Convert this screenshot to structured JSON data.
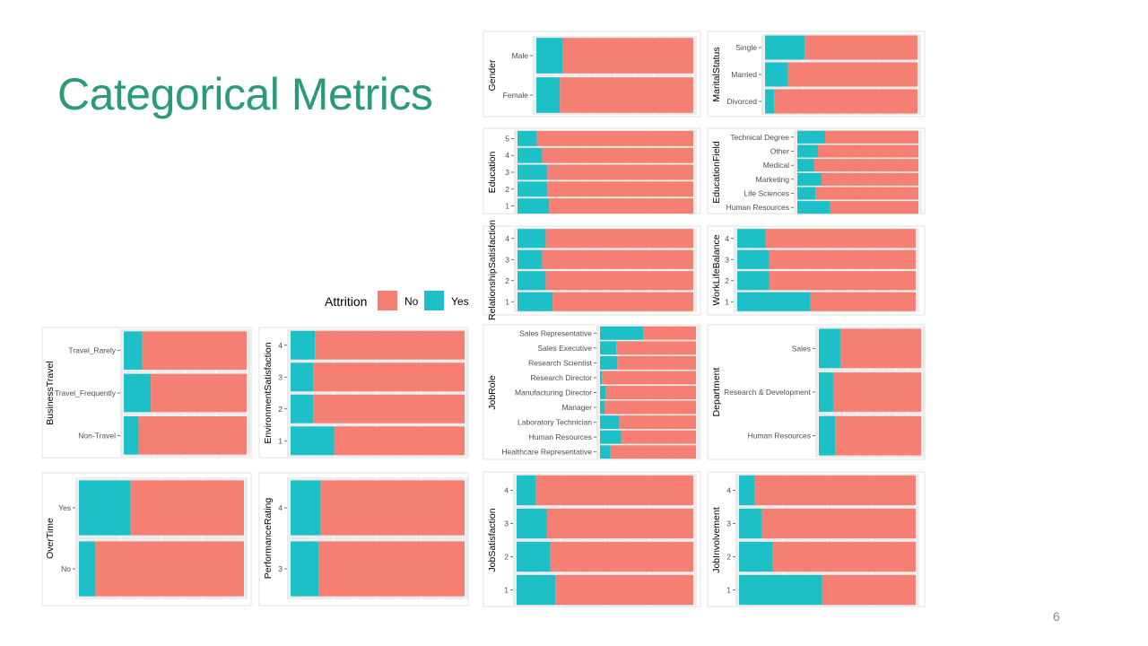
{
  "slide": {
    "title": "Categorical Metrics",
    "page_number": "6"
  },
  "colors": {
    "title": "#2a9a7c",
    "yes": "#1cc0c6",
    "no": "#f47f72",
    "panel_background": "#ebebeb",
    "grid": "#ffffff"
  },
  "legend": {
    "title": "Attrition",
    "entries": [
      {
        "label": "No",
        "color": "#f47f72"
      },
      {
        "label": "Yes",
        "color": "#1cc0c6"
      }
    ]
  },
  "chart_data": [
    {
      "id": "gender",
      "type": "bar",
      "stacked": "proportion",
      "orientation": "horizontal",
      "ylabel": "Gender",
      "xlim": [
        0,
        1
      ],
      "categories": [
        "Male",
        "Female"
      ],
      "series": [
        {
          "name": "Yes",
          "values": [
            0.17,
            0.15
          ]
        },
        {
          "name": "No",
          "values": [
            0.83,
            0.85
          ]
        }
      ]
    },
    {
      "id": "marital-status",
      "type": "bar",
      "stacked": "proportion",
      "orientation": "horizontal",
      "ylabel": "MaritalStatus",
      "xlim": [
        0,
        1
      ],
      "categories": [
        "Single",
        "Married",
        "Divorced"
      ],
      "series": [
        {
          "name": "Yes",
          "values": [
            0.26,
            0.15,
            0.06
          ]
        },
        {
          "name": "No",
          "values": [
            0.74,
            0.85,
            0.94
          ]
        }
      ]
    },
    {
      "id": "education",
      "type": "bar",
      "stacked": "proportion",
      "orientation": "horizontal",
      "ylabel": "Education",
      "xlim": [
        0,
        1
      ],
      "categories": [
        "5",
        "4",
        "3",
        "2",
        "1"
      ],
      "series": [
        {
          "name": "Yes",
          "values": [
            0.11,
            0.14,
            0.17,
            0.17,
            0.18
          ]
        },
        {
          "name": "No",
          "values": [
            0.89,
            0.86,
            0.83,
            0.83,
            0.82
          ]
        }
      ]
    },
    {
      "id": "education-field",
      "type": "bar",
      "stacked": "proportion",
      "orientation": "horizontal",
      "ylabel": "EducationField",
      "xlim": [
        0,
        1
      ],
      "categories": [
        "Technical Degree",
        "Other",
        "Medical",
        "Marketing",
        "Life Sciences",
        "Human Resources"
      ],
      "series": [
        {
          "name": "Yes",
          "values": [
            0.23,
            0.17,
            0.14,
            0.2,
            0.15,
            0.27
          ]
        },
        {
          "name": "No",
          "values": [
            0.77,
            0.83,
            0.86,
            0.8,
            0.85,
            0.73
          ]
        }
      ]
    },
    {
      "id": "relationship-satisfaction",
      "type": "bar",
      "stacked": "proportion",
      "orientation": "horizontal",
      "ylabel": "RelationshipSatisfaction",
      "xlim": [
        0,
        1
      ],
      "categories": [
        "4",
        "3",
        "2",
        "1"
      ],
      "series": [
        {
          "name": "Yes",
          "values": [
            0.16,
            0.14,
            0.16,
            0.2
          ]
        },
        {
          "name": "No",
          "values": [
            0.84,
            0.86,
            0.84,
            0.8
          ]
        }
      ]
    },
    {
      "id": "work-life-balance",
      "type": "bar",
      "stacked": "proportion",
      "orientation": "horizontal",
      "ylabel": "WorkLifeBalance",
      "xlim": [
        0,
        1
      ],
      "categories": [
        "4",
        "3",
        "2",
        "1"
      ],
      "series": [
        {
          "name": "Yes",
          "values": [
            0.16,
            0.18,
            0.18,
            0.41
          ]
        },
        {
          "name": "No",
          "values": [
            0.84,
            0.82,
            0.82,
            0.59
          ]
        }
      ]
    },
    {
      "id": "job-role",
      "type": "bar",
      "stacked": "proportion",
      "orientation": "horizontal",
      "ylabel": "JobRole",
      "xlim": [
        0,
        1
      ],
      "categories": [
        "Sales Representative",
        "Sales Executive",
        "Research Scientist",
        "Research Director",
        "Manufacturing Director",
        "Manager",
        "Laboratory Technician",
        "Human Resources",
        "Healthcare Representative"
      ],
      "series": [
        {
          "name": "Yes",
          "values": [
            0.45,
            0.17,
            0.18,
            0.02,
            0.06,
            0.05,
            0.2,
            0.22,
            0.11
          ]
        },
        {
          "name": "No",
          "values": [
            0.55,
            0.83,
            0.82,
            0.98,
            0.94,
            0.95,
            0.8,
            0.78,
            0.89
          ]
        }
      ]
    },
    {
      "id": "department",
      "type": "bar",
      "stacked": "proportion",
      "orientation": "horizontal",
      "ylabel": "Department",
      "xlim": [
        0,
        1
      ],
      "categories": [
        "Sales",
        "Research & Development",
        "Human Resources"
      ],
      "series": [
        {
          "name": "Yes",
          "values": [
            0.21,
            0.14,
            0.16
          ]
        },
        {
          "name": "No",
          "values": [
            0.79,
            0.86,
            0.84
          ]
        }
      ]
    },
    {
      "id": "business-travel",
      "type": "bar",
      "stacked": "proportion",
      "orientation": "horizontal",
      "ylabel": "BusinessTravel",
      "xlim": [
        0,
        1
      ],
      "categories": [
        "Travel_Rarely",
        "Travel_Frequently",
        "Non-Travel"
      ],
      "series": [
        {
          "name": "Yes",
          "values": [
            0.15,
            0.22,
            0.12
          ]
        },
        {
          "name": "No",
          "values": [
            0.85,
            0.78,
            0.88
          ]
        }
      ]
    },
    {
      "id": "environment-satisfaction",
      "type": "bar",
      "stacked": "proportion",
      "orientation": "horizontal",
      "ylabel": "EnvironmentSatisfaction",
      "xlim": [
        0,
        1
      ],
      "categories": [
        "4",
        "3",
        "2",
        "1"
      ],
      "series": [
        {
          "name": "Yes",
          "values": [
            0.14,
            0.13,
            0.13,
            0.25
          ]
        },
        {
          "name": "No",
          "values": [
            0.86,
            0.87,
            0.87,
            0.75
          ]
        }
      ]
    },
    {
      "id": "over-time",
      "type": "bar",
      "stacked": "proportion",
      "orientation": "horizontal",
      "ylabel": "OverTime",
      "xlim": [
        0,
        1
      ],
      "categories": [
        "Yes",
        "No"
      ],
      "series": [
        {
          "name": "Yes",
          "values": [
            0.31,
            0.1
          ]
        },
        {
          "name": "No",
          "values": [
            0.69,
            0.9
          ]
        }
      ]
    },
    {
      "id": "performance-rating",
      "type": "bar",
      "stacked": "proportion",
      "orientation": "horizontal",
      "ylabel": "PerformanceRating",
      "xlim": [
        0,
        1
      ],
      "categories": [
        "4",
        "3"
      ],
      "series": [
        {
          "name": "Yes",
          "values": [
            0.17,
            0.16
          ]
        },
        {
          "name": "No",
          "values": [
            0.83,
            0.84
          ]
        }
      ]
    },
    {
      "id": "job-satisfaction",
      "type": "bar",
      "stacked": "proportion",
      "orientation": "horizontal",
      "ylabel": "JobSatisfaction",
      "xlim": [
        0,
        1
      ],
      "categories": [
        "4",
        "3",
        "2",
        "1"
      ],
      "series": [
        {
          "name": "Yes",
          "values": [
            0.11,
            0.17,
            0.19,
            0.22
          ]
        },
        {
          "name": "No",
          "values": [
            0.89,
            0.83,
            0.81,
            0.78
          ]
        }
      ]
    },
    {
      "id": "job-involvement",
      "type": "bar",
      "stacked": "proportion",
      "orientation": "horizontal",
      "ylabel": "JobInvolvement",
      "xlim": [
        0,
        1
      ],
      "categories": [
        "4",
        "3",
        "2",
        "1"
      ],
      "series": [
        {
          "name": "Yes",
          "values": [
            0.09,
            0.13,
            0.19,
            0.47
          ]
        },
        {
          "name": "No",
          "values": [
            0.91,
            0.87,
            0.81,
            0.53
          ]
        }
      ]
    }
  ]
}
